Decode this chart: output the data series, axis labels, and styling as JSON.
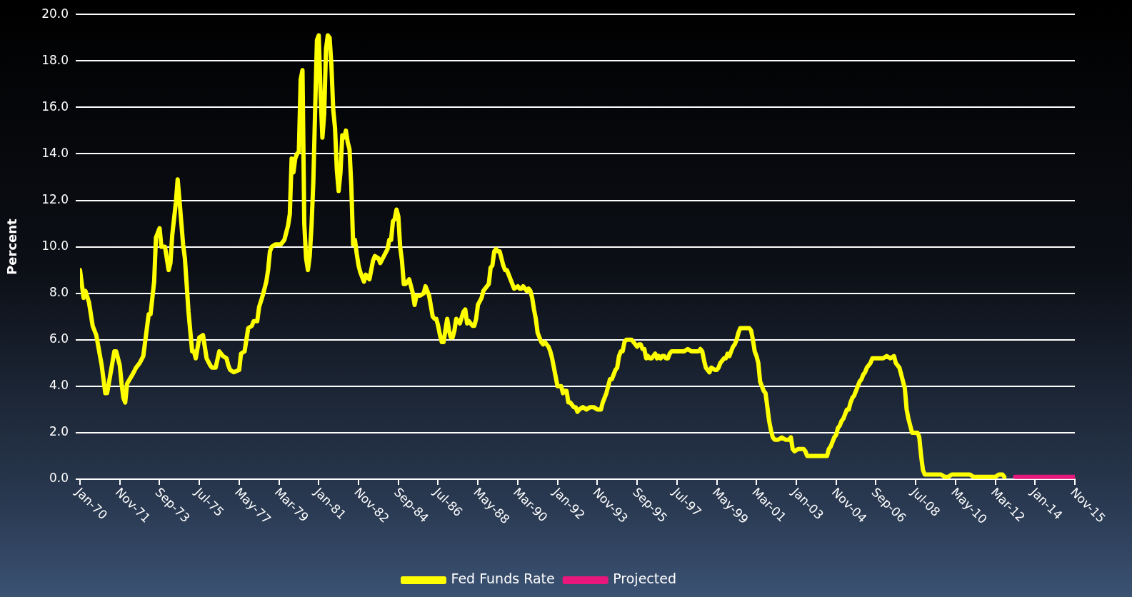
{
  "chart_data": {
    "type": "line",
    "ylabel": "Percent",
    "grid": "y",
    "legend": "bottom",
    "marker": "none",
    "line_style": "solid",
    "xlim": [
      "1970-01",
      "2015-11"
    ],
    "xticks": [
      {
        "value": "1970-01",
        "label": "Jan-70"
      },
      {
        "value": "1971-11",
        "label": "Nov-71"
      },
      {
        "value": "1973-09",
        "label": "Sep-73"
      },
      {
        "value": "1975-07",
        "label": "Jul-75"
      },
      {
        "value": "1977-05",
        "label": "May-77"
      },
      {
        "value": "1979-03",
        "label": "Mar-79"
      },
      {
        "value": "1981-01",
        "label": "Jan-81"
      },
      {
        "value": "1982-11",
        "label": "Nov-82"
      },
      {
        "value": "1984-09",
        "label": "Sep-84"
      },
      {
        "value": "1986-07",
        "label": "Jul-86"
      },
      {
        "value": "1988-05",
        "label": "May-88"
      },
      {
        "value": "1990-03",
        "label": "Mar-90"
      },
      {
        "value": "1992-01",
        "label": "Jan-92"
      },
      {
        "value": "1993-11",
        "label": "Nov-93"
      },
      {
        "value": "1995-09",
        "label": "Sep-95"
      },
      {
        "value": "1997-07",
        "label": "Jul-97"
      },
      {
        "value": "1999-05",
        "label": "May-99"
      },
      {
        "value": "2001-03",
        "label": "Mar-01"
      },
      {
        "value": "2003-01",
        "label": "Jan-03"
      },
      {
        "value": "2004-11",
        "label": "Nov-04"
      },
      {
        "value": "2006-09",
        "label": "Sep-06"
      },
      {
        "value": "2008-07",
        "label": "Jul-08"
      },
      {
        "value": "2010-05",
        "label": "May-10"
      },
      {
        "value": "2012-03",
        "label": "Mar-12"
      },
      {
        "value": "2014-01",
        "label": "Jan-14"
      },
      {
        "value": "2015-11",
        "label": "Nov-15"
      }
    ],
    "ylim": [
      0,
      20
    ],
    "yticks": [
      {
        "value": 0,
        "label": "0.0"
      },
      {
        "value": 2,
        "label": "2.0"
      },
      {
        "value": 4,
        "label": "4.0"
      },
      {
        "value": 6,
        "label": "6.0"
      },
      {
        "value": 8,
        "label": "8.0"
      },
      {
        "value": 10,
        "label": "10.0"
      },
      {
        "value": 12,
        "label": "12.0"
      },
      {
        "value": 14,
        "label": "14.0"
      },
      {
        "value": 16,
        "label": "16.0"
      },
      {
        "value": 18,
        "label": "18.0"
      },
      {
        "value": 20,
        "label": "20.0"
      }
    ],
    "series": [
      {
        "name": "Fed Funds Rate",
        "color": "#ffff00",
        "x": [
          "1970-01",
          "1970-03",
          "1970-04",
          "1970-06",
          "1970-08",
          "1970-10",
          "1971-01",
          "1971-03",
          "1971-04",
          "1971-06",
          "1971-08",
          "1971-09",
          "1971-11",
          "1971-12",
          "1972-01",
          "1972-02",
          "1972-03",
          "1972-06",
          "1972-08",
          "1972-10",
          "1972-12",
          "1973-03",
          "1973-04",
          "1973-06",
          "1973-07",
          "1973-09",
          "1973-10",
          "1973-12",
          "1974-02",
          "1974-03",
          "1974-04",
          "1974-06",
          "1974-07",
          "1974-08",
          "1974-10",
          "1974-11",
          "1975-01",
          "1975-03",
          "1975-04",
          "1975-05",
          "1975-07",
          "1975-09",
          "1975-11",
          "1976-01",
          "1976-02",
          "1976-04",
          "1976-06",
          "1976-08",
          "1976-10",
          "1976-11",
          "1976-12",
          "1977-02",
          "1977-05",
          "1977-06",
          "1977-08",
          "1977-10",
          "1977-12",
          "1978-01",
          "1978-03",
          "1978-04",
          "1978-06",
          "1978-08",
          "1978-09",
          "1978-10",
          "1978-11",
          "1979-01",
          "1979-03",
          "1979-04",
          "1979-06",
          "1979-08",
          "1979-09",
          "1979-10",
          "1979-11",
          "1979-12",
          "1980-01",
          "1980-02",
          "1980-03",
          "1980-04",
          "1980-05",
          "1980-06",
          "1980-07",
          "1980-08",
          "1980-09",
          "1980-10",
          "1980-11",
          "1980-12",
          "1981-01",
          "1981-02",
          "1981-03",
          "1981-04",
          "1981-05",
          "1981-06",
          "1981-07",
          "1981-08",
          "1981-09",
          "1981-10",
          "1981-11",
          "1981-12",
          "1982-01",
          "1982-02",
          "1982-03",
          "1982-04",
          "1982-05",
          "1982-06",
          "1982-07",
          "1982-08",
          "1982-09",
          "1982-10",
          "1982-11",
          "1982-12",
          "1983-02",
          "1983-03",
          "1983-05",
          "1983-06",
          "1983-07",
          "1983-08",
          "1983-10",
          "1983-11",
          "1984-01",
          "1984-03",
          "1984-04",
          "1984-05",
          "1984-06",
          "1984-07",
          "1984-08",
          "1984-09",
          "1984-10",
          "1984-11",
          "1984-12",
          "1985-01",
          "1985-03",
          "1985-04",
          "1985-05",
          "1985-06",
          "1985-07",
          "1985-09",
          "1985-11",
          "1985-12",
          "1986-01",
          "1986-02",
          "1986-04",
          "1986-05",
          "1986-06",
          "1986-07",
          "1986-08",
          "1986-09",
          "1986-10",
          "1986-12",
          "1987-01",
          "1987-02",
          "1987-03",
          "1987-04",
          "1987-05",
          "1987-07",
          "1987-09",
          "1987-10",
          "1987-11",
          "1987-12",
          "1988-02",
          "1988-03",
          "1988-04",
          "1988-05",
          "1988-07",
          "1988-08",
          "1988-10",
          "1988-11",
          "1988-12",
          "1989-01",
          "1989-02",
          "1989-03",
          "1989-04",
          "1989-05",
          "1989-06",
          "1989-07",
          "1989-08",
          "1989-09",
          "1989-10",
          "1989-11",
          "1989-12",
          "1990-01",
          "1990-03",
          "1990-04",
          "1990-05",
          "1990-06",
          "1990-07",
          "1990-08",
          "1990-09",
          "1990-10",
          "1990-11",
          "1990-12",
          "1991-01",
          "1991-02",
          "1991-03",
          "1991-04",
          "1991-05",
          "1991-06",
          "1991-07",
          "1991-08",
          "1991-09",
          "1991-10",
          "1991-11",
          "1991-12",
          "1992-01",
          "1992-02",
          "1992-03",
          "1992-04",
          "1992-05",
          "1992-06",
          "1992-07",
          "1992-08",
          "1992-09",
          "1992-10",
          "1992-11",
          "1992-12",
          "1993-01",
          "1993-03",
          "1993-05",
          "1993-07",
          "1993-09",
          "1993-11",
          "1993-12",
          "1994-01",
          "1994-02",
          "1994-03",
          "1994-04",
          "1994-05",
          "1994-06",
          "1994-07",
          "1994-08",
          "1994-09",
          "1994-10",
          "1994-11",
          "1994-12",
          "1995-01",
          "1995-02",
          "1995-03",
          "1995-04",
          "1995-05",
          "1995-06",
          "1995-07",
          "1995-08",
          "1995-09",
          "1995-10",
          "1995-11",
          "1995-12",
          "1996-01",
          "1996-02",
          "1996-03",
          "1996-04",
          "1996-05",
          "1996-06",
          "1996-07",
          "1996-08",
          "1996-09",
          "1996-10",
          "1996-11",
          "1996-12",
          "1997-01",
          "1997-02",
          "1997-03",
          "1997-04",
          "1997-05",
          "1997-07",
          "1997-09",
          "1997-11",
          "1998-01",
          "1998-03",
          "1998-05",
          "1998-07",
          "1998-08",
          "1998-09",
          "1998-10",
          "1998-11",
          "1998-12",
          "1999-01",
          "1999-02",
          "1999-04",
          "1999-05",
          "1999-06",
          "1999-07",
          "1999-08",
          "1999-09",
          "1999-10",
          "1999-11",
          "1999-12",
          "2000-01",
          "2000-02",
          "2000-03",
          "2000-04",
          "2000-05",
          "2000-06",
          "2000-07",
          "2000-08",
          "2000-09",
          "2000-10",
          "2000-11",
          "2000-12",
          "2001-01",
          "2001-02",
          "2001-03",
          "2001-04",
          "2001-05",
          "2001-06",
          "2001-07",
          "2001-08",
          "2001-09",
          "2001-10",
          "2001-11",
          "2001-12",
          "2002-01",
          "2002-03",
          "2002-05",
          "2002-07",
          "2002-09",
          "2002-10",
          "2002-11",
          "2002-12",
          "2003-02",
          "2003-04",
          "2003-05",
          "2003-06",
          "2003-07",
          "2003-09",
          "2003-11",
          "2004-01",
          "2004-03",
          "2004-05",
          "2004-06",
          "2004-07",
          "2004-08",
          "2004-09",
          "2004-10",
          "2004-11",
          "2004-12",
          "2005-01",
          "2005-02",
          "2005-03",
          "2005-04",
          "2005-05",
          "2005-06",
          "2005-07",
          "2005-08",
          "2005-09",
          "2005-10",
          "2005-11",
          "2005-12",
          "2006-01",
          "2006-02",
          "2006-03",
          "2006-04",
          "2006-05",
          "2006-06",
          "2006-07",
          "2006-09",
          "2006-11",
          "2007-01",
          "2007-03",
          "2007-05",
          "2007-07",
          "2007-08",
          "2007-09",
          "2007-10",
          "2007-11",
          "2007-12",
          "2008-01",
          "2008-02",
          "2008-03",
          "2008-04",
          "2008-05",
          "2008-06",
          "2008-07",
          "2008-08",
          "2008-09",
          "2008-10",
          "2008-11",
          "2008-12",
          "2009-01",
          "2009-03",
          "2009-05",
          "2009-07",
          "2009-09",
          "2009-11",
          "2010-01",
          "2010-03",
          "2010-05",
          "2010-07",
          "2010-09",
          "2010-11",
          "2011-01",
          "2011-03",
          "2011-05",
          "2011-07",
          "2011-09",
          "2011-11",
          "2012-01",
          "2012-03",
          "2012-05",
          "2012-07",
          "2012-08"
        ],
        "values": [
          9.0,
          7.8,
          8.1,
          7.6,
          6.6,
          6.2,
          4.9,
          3.7,
          3.7,
          4.6,
          5.5,
          5.5,
          4.9,
          4.1,
          3.5,
          3.3,
          4.1,
          4.5,
          4.8,
          5.0,
          5.3,
          7.1,
          7.1,
          8.5,
          10.4,
          10.8,
          10.0,
          10.0,
          9.0,
          9.3,
          10.5,
          11.9,
          12.9,
          12.0,
          10.1,
          9.5,
          7.2,
          5.5,
          5.5,
          5.2,
          6.1,
          6.2,
          5.2,
          4.9,
          4.8,
          4.8,
          5.5,
          5.3,
          5.2,
          4.9,
          4.7,
          4.6,
          4.7,
          5.4,
          5.5,
          6.5,
          6.6,
          6.8,
          6.8,
          7.4,
          7.9,
          8.5,
          9.0,
          9.8,
          10.0,
          10.1,
          10.1,
          10.1,
          10.3,
          10.9,
          11.4,
          13.8,
          13.2,
          13.8,
          14.0,
          14.1,
          17.2,
          17.6,
          11.0,
          9.5,
          9.0,
          9.6,
          10.9,
          12.8,
          15.9,
          18.9,
          19.1,
          16.6,
          14.7,
          15.7,
          18.5,
          19.1,
          19.0,
          17.8,
          15.9,
          15.1,
          13.3,
          12.4,
          13.2,
          14.8,
          14.7,
          15.0,
          14.5,
          14.2,
          12.6,
          10.1,
          10.3,
          9.7,
          9.2,
          8.9,
          8.5,
          8.8,
          8.6,
          9.0,
          9.4,
          9.6,
          9.5,
          9.3,
          9.6,
          9.9,
          10.3,
          10.3,
          11.1,
          11.2,
          11.6,
          11.3,
          10.0,
          9.4,
          8.4,
          8.4,
          8.6,
          8.3,
          8.0,
          7.5,
          7.9,
          7.9,
          8.0,
          8.3,
          8.1,
          7.9,
          7.0,
          6.9,
          6.9,
          6.6,
          6.2,
          5.9,
          5.9,
          6.9,
          6.4,
          6.1,
          6.1,
          6.4,
          6.9,
          6.7,
          7.2,
          7.3,
          6.7,
          6.8,
          6.6,
          6.6,
          6.9,
          7.5,
          7.8,
          8.1,
          8.3,
          8.4,
          9.1,
          9.2,
          9.8,
          9.9,
          9.8,
          9.8,
          9.5,
          9.2,
          9.0,
          9.0,
          8.8,
          8.6,
          8.4,
          8.2,
          8.3,
          8.2,
          8.2,
          8.3,
          8.2,
          8.1,
          8.2,
          8.1,
          7.8,
          7.3,
          6.9,
          6.3,
          6.1,
          5.9,
          5.8,
          5.9,
          5.8,
          5.7,
          5.5,
          5.2,
          4.8,
          4.4,
          4.0,
          4.0,
          4.0,
          3.7,
          3.8,
          3.8,
          3.3,
          3.3,
          3.2,
          3.1,
          3.1,
          2.9,
          3.0,
          3.1,
          3.0,
          3.1,
          3.1,
          3.0,
          3.0,
          3.0,
          3.3,
          3.5,
          3.7,
          4.0,
          4.3,
          4.3,
          4.5,
          4.7,
          4.8,
          5.3,
          5.5,
          5.5,
          5.9,
          6.0,
          6.0,
          6.0,
          6.0,
          5.9,
          5.8,
          5.7,
          5.8,
          5.8,
          5.6,
          5.6,
          5.2,
          5.3,
          5.2,
          5.2,
          5.3,
          5.4,
          5.2,
          5.3,
          5.2,
          5.3,
          5.3,
          5.2,
          5.2,
          5.4,
          5.5,
          5.5,
          5.5,
          5.5,
          5.5,
          5.6,
          5.5,
          5.5,
          5.5,
          5.6,
          5.5,
          5.1,
          4.8,
          4.7,
          4.6,
          4.8,
          4.7,
          4.7,
          4.8,
          5.0,
          5.1,
          5.2,
          5.2,
          5.4,
          5.3,
          5.5,
          5.7,
          5.8,
          6.0,
          6.3,
          6.5,
          6.5,
          6.5,
          6.5,
          6.5,
          6.5,
          6.4,
          6.0,
          5.5,
          5.3,
          5.0,
          4.2,
          4.0,
          3.8,
          3.7,
          3.1,
          2.5,
          2.1,
          1.8,
          1.7,
          1.7,
          1.8,
          1.7,
          1.7,
          1.8,
          1.3,
          1.2,
          1.3,
          1.3,
          1.3,
          1.2,
          1.0,
          1.0,
          1.0,
          1.0,
          1.0,
          1.0,
          1.0,
          1.3,
          1.4,
          1.6,
          1.8,
          1.9,
          2.2,
          2.3,
          2.5,
          2.6,
          2.8,
          3.0,
          3.0,
          3.3,
          3.5,
          3.6,
          3.8,
          4.0,
          4.2,
          4.3,
          4.5,
          4.6,
          4.8,
          4.9,
          5.0,
          5.2,
          5.2,
          5.2,
          5.2,
          5.3,
          5.2,
          5.3,
          5.0,
          4.9,
          4.8,
          4.5,
          4.2,
          3.9,
          3.0,
          2.6,
          2.3,
          2.0,
          2.0,
          2.0,
          2.0,
          1.8,
          1.0,
          0.4,
          0.2,
          0.2,
          0.2,
          0.2,
          0.2,
          0.2,
          0.1,
          0.1,
          0.2,
          0.2,
          0.2,
          0.2,
          0.2,
          0.2,
          0.1,
          0.1,
          0.1,
          0.1,
          0.1,
          0.1,
          0.1,
          0.2,
          0.2,
          0.1
        ]
      },
      {
        "name": "Projected",
        "color": "#e8177c",
        "x": [
          "2013-02",
          "2015-11"
        ],
        "values": [
          0.1,
          0.1
        ]
      }
    ]
  }
}
